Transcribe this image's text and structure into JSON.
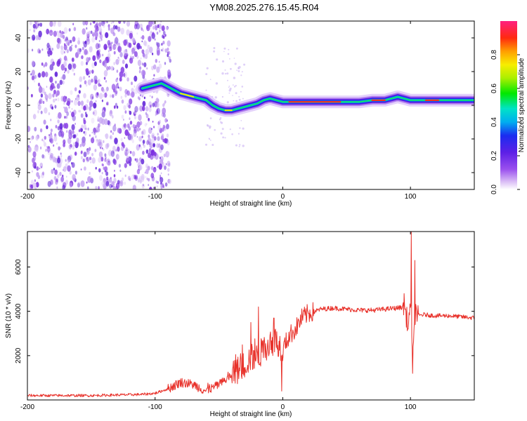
{
  "figure": {
    "title": "YM08.2025.276.15.45.R04"
  },
  "colors": {
    "snr_line": "#e8312a",
    "axes": "#000000",
    "scatter": "#6a1fd6"
  },
  "chart_data": [
    {
      "type": "heatmap",
      "name": "frequency-height spectrogram",
      "xlabel": "Height of straight line (km)",
      "ylabel": "Frequency (Hz)",
      "xlim": [
        -200,
        150
      ],
      "ylim": [
        -50,
        50
      ],
      "x_ticks": [
        -200,
        -100,
        0,
        100
      ],
      "y_ticks": [
        -40,
        -20,
        0,
        20,
        40
      ],
      "colorbar": {
        "label": "Normalized spectral amplitude",
        "range": [
          0,
          1
        ],
        "ticks": [
          "0.0",
          "0.2",
          "0.4",
          "0.6",
          "0.8"
        ]
      },
      "ridge": {
        "x": [
          -110,
          -100,
          -95,
          -90,
          -85,
          -80,
          -75,
          -70,
          -65,
          -60,
          -55,
          -50,
          -45,
          -40,
          -35,
          -30,
          -25,
          -20,
          -15,
          -10,
          -5,
          0,
          10,
          20,
          30,
          40,
          50,
          60,
          70,
          80,
          85,
          90,
          95,
          100,
          110,
          120,
          130,
          140,
          150
        ],
        "y": [
          10,
          12,
          13,
          11,
          9,
          7,
          6,
          5,
          4,
          3,
          0,
          -2,
          -3,
          -3,
          -2,
          -1,
          0,
          1,
          3,
          4,
          3,
          2,
          2,
          2,
          2,
          2,
          2,
          2,
          3,
          3,
          4,
          5,
          4,
          3,
          3,
          3,
          3,
          3,
          3
        ]
      }
    },
    {
      "type": "line",
      "name": "SNR",
      "xlabel": "Height of straight line (km)",
      "ylabel": "SNR (10 * v/v)",
      "xlim": [
        -200,
        150
      ],
      "ylim": [
        0,
        7600
      ],
      "x_ticks": [
        -200,
        -100,
        0,
        100
      ],
      "y_ticks": [
        2000,
        4000,
        6000
      ],
      "series": [
        {
          "name": "SNR",
          "x": [
            -200,
            -150,
            -110,
            -100,
            -90,
            -80,
            -70,
            -60,
            -50,
            -40,
            -30,
            -25,
            -20,
            -15,
            -10,
            -5,
            0,
            5,
            10,
            15,
            20,
            30,
            40,
            50,
            60,
            70,
            80,
            90,
            95,
            98,
            100,
            102,
            104,
            106,
            110,
            120,
            130,
            140,
            150
          ],
          "y": [
            200,
            200,
            250,
            300,
            500,
            800,
            700,
            400,
            700,
            1100,
            1600,
            1900,
            1900,
            2300,
            2600,
            2700,
            2300,
            2900,
            3200,
            3700,
            3900,
            4100,
            4150,
            4100,
            4050,
            4050,
            4100,
            4150,
            4200,
            3500,
            4100,
            1900,
            4100,
            3800,
            3850,
            3800,
            3800,
            3750,
            3700
          ]
        }
      ],
      "spikes": [
        {
          "x": 100.5,
          "y": 7600
        },
        {
          "x": 101.8,
          "y": 1200
        },
        {
          "x": 103.5,
          "y": 6300
        },
        {
          "x": -19,
          "y": 4200
        },
        {
          "x": -25,
          "y": 3500
        },
        {
          "x": -7,
          "y": 3700
        },
        {
          "x": -1,
          "y": 400
        },
        {
          "x": 95,
          "y": 4800
        },
        {
          "x": 98,
          "y": 3200
        }
      ]
    }
  ]
}
